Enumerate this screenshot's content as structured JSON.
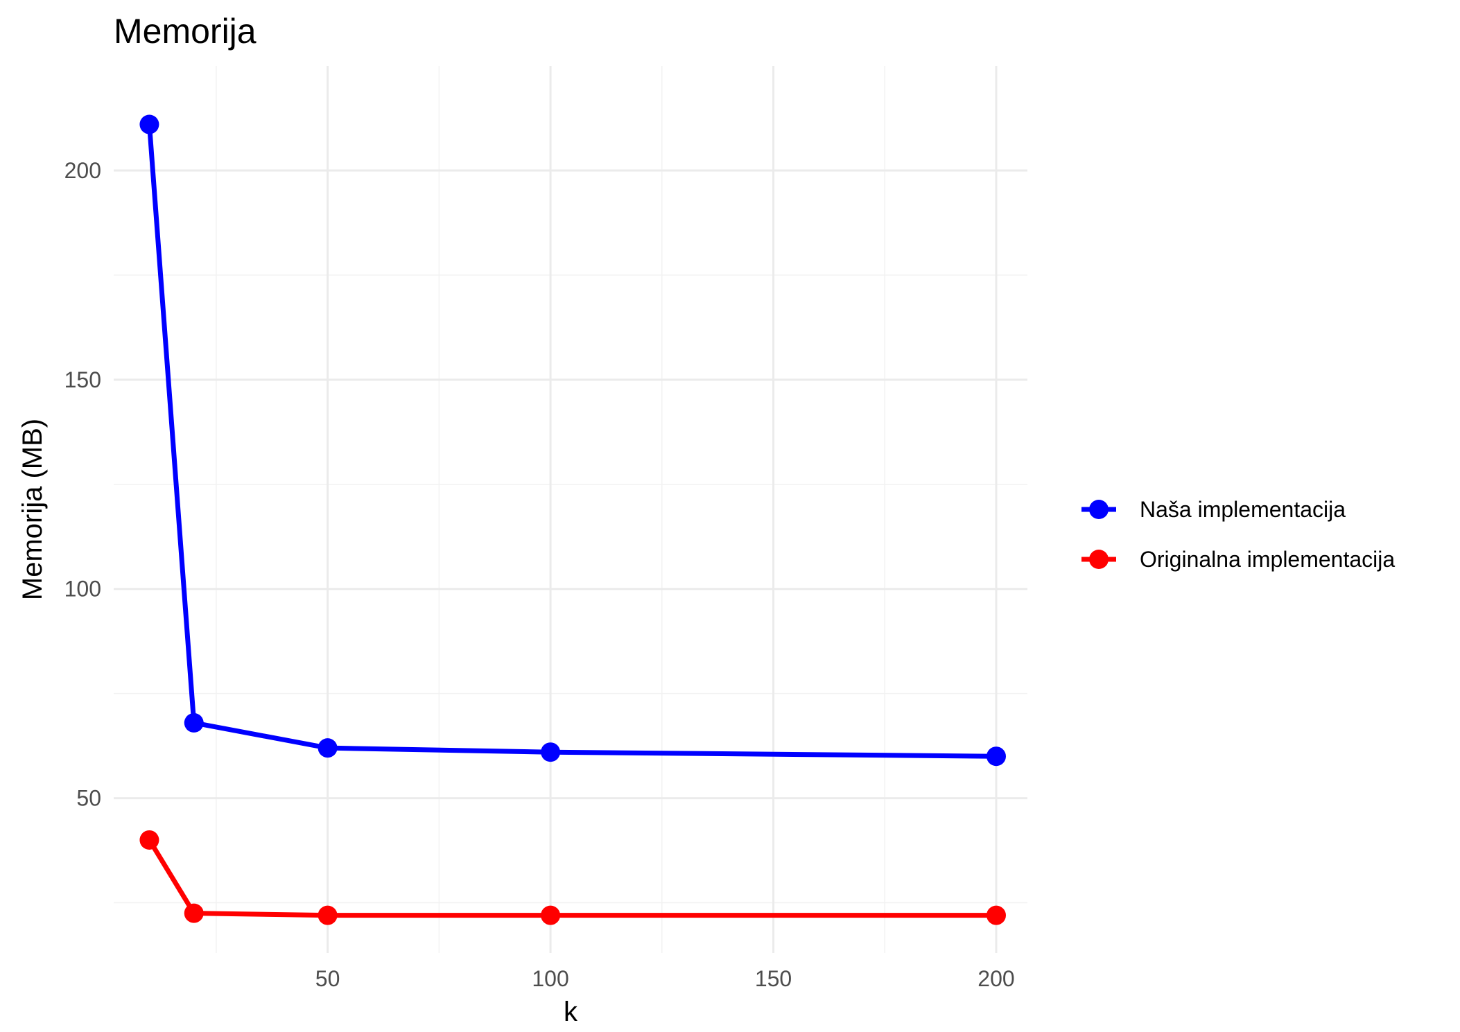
{
  "chart_data": {
    "type": "line",
    "title": "Memorija",
    "xlabel": "k",
    "ylabel": "Memorija (MB)",
    "x": [
      10,
      20,
      50,
      100,
      200
    ],
    "x_ticks": [
      50,
      100,
      150,
      200
    ],
    "y_ticks": [
      50,
      100,
      150,
      200
    ],
    "xlim": [
      2,
      207
    ],
    "ylim": [
      13,
      225
    ],
    "grid": true,
    "legend_position": "right",
    "series": [
      {
        "name": "Naša implementacija",
        "color": "#0000ff",
        "values": [
          211,
          68,
          62,
          61,
          60
        ]
      },
      {
        "name": "Originalna implementacija",
        "color": "#ff0000",
        "values": [
          40,
          22.5,
          22,
          22,
          22
        ]
      }
    ]
  }
}
